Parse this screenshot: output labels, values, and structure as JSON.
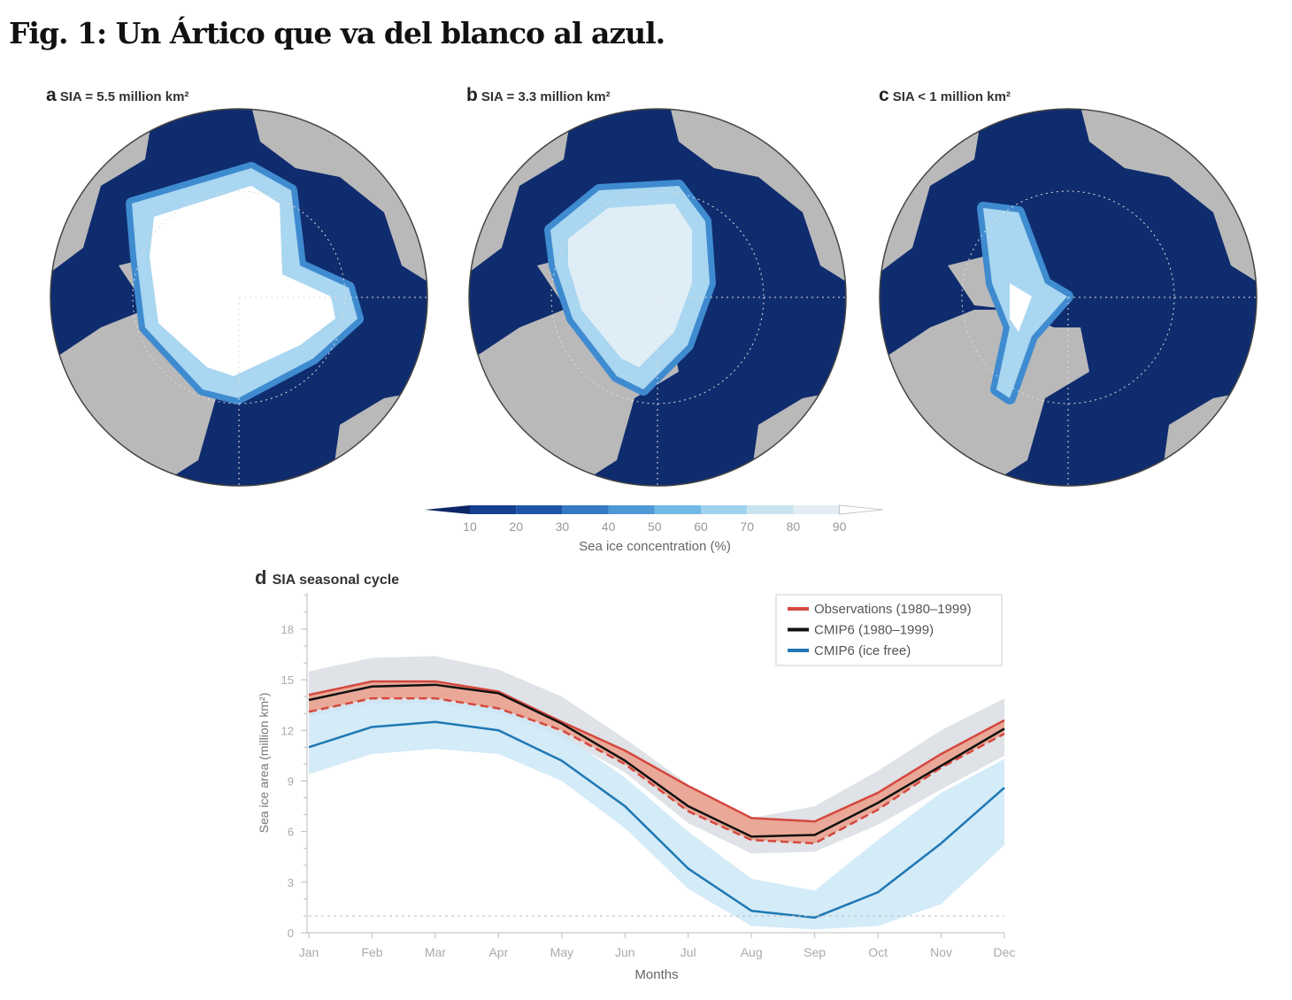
{
  "title": "Fig. 1: Un Ártico que va del blanco al azul.",
  "panels": [
    {
      "letter": "a",
      "label": "SIA = 5.5 million km²"
    },
    {
      "letter": "b",
      "label": "SIA = 3.3 million km²"
    },
    {
      "letter": "c",
      "label": "SIA < 1 million km²"
    }
  ],
  "colorbar": {
    "label": "Sea ice concentration (%)",
    "ticks": [
      "10",
      "20",
      "30",
      "40",
      "50",
      "60",
      "70",
      "80",
      "90"
    ],
    "colors": [
      "#0c2766",
      "#153f8f",
      "#1d56a8",
      "#3479c2",
      "#4f98d6",
      "#70b9e6",
      "#9fd2ee",
      "#c8e3f0",
      "#e3edf3",
      "#ffffff"
    ]
  },
  "chart_data": {
    "type": "line",
    "title": "SIA seasonal cycle",
    "letter": "d",
    "xlabel": "Months",
    "ylabel": "Sea ice area (million km²)",
    "categories": [
      "Jan",
      "Feb",
      "Mar",
      "Apr",
      "May",
      "Jun",
      "Jul",
      "Aug",
      "Sep",
      "Oct",
      "Nov",
      "Dec"
    ],
    "ylim": [
      0,
      20
    ],
    "yticks": [
      "0",
      "3",
      "6",
      "9",
      "12",
      "15",
      "18"
    ],
    "threshold": 1.0,
    "legend_position": "top-right",
    "series": [
      {
        "name": "Observations (1980–1999)",
        "color": "#d4483f",
        "band_color": "#ec9f8a",
        "upper": [
          14.1,
          14.9,
          14.9,
          14.3,
          12.5,
          10.8,
          8.7,
          6.8,
          6.6,
          8.3,
          10.6,
          12.6
        ],
        "lower": [
          13.1,
          13.9,
          13.9,
          13.3,
          12.0,
          10.0,
          7.2,
          5.5,
          5.3,
          7.3,
          9.8,
          11.8
        ]
      },
      {
        "name": "CMIP6 (1980–1999)",
        "color": "#111111",
        "band_color": "#d9dde2",
        "values": [
          13.8,
          14.6,
          14.7,
          14.2,
          12.4,
          10.2,
          7.5,
          5.7,
          5.8,
          7.7,
          9.9,
          12.1
        ],
        "upper": [
          15.5,
          16.3,
          16.4,
          15.6,
          14.0,
          11.5,
          8.8,
          6.8,
          7.5,
          9.6,
          12.0,
          13.9
        ],
        "lower": [
          12.8,
          13.6,
          13.6,
          13.0,
          11.6,
          9.5,
          6.5,
          4.7,
          4.8,
          6.4,
          8.5,
          10.5
        ]
      },
      {
        "name": "CMIP6 (ice free)",
        "color": "#1f78b4",
        "band_color": "#cde8f7",
        "values": [
          11.0,
          12.2,
          12.5,
          12.0,
          10.2,
          7.5,
          3.8,
          1.3,
          0.9,
          2.4,
          5.3,
          8.6
        ],
        "upper": [
          13.0,
          13.8,
          13.8,
          13.3,
          11.8,
          9.2,
          6.0,
          3.2,
          2.5,
          5.5,
          8.3,
          10.3
        ],
        "lower": [
          9.4,
          10.6,
          10.9,
          10.6,
          9.0,
          6.2,
          2.6,
          0.4,
          0.2,
          0.4,
          1.7,
          5.2
        ]
      }
    ]
  }
}
